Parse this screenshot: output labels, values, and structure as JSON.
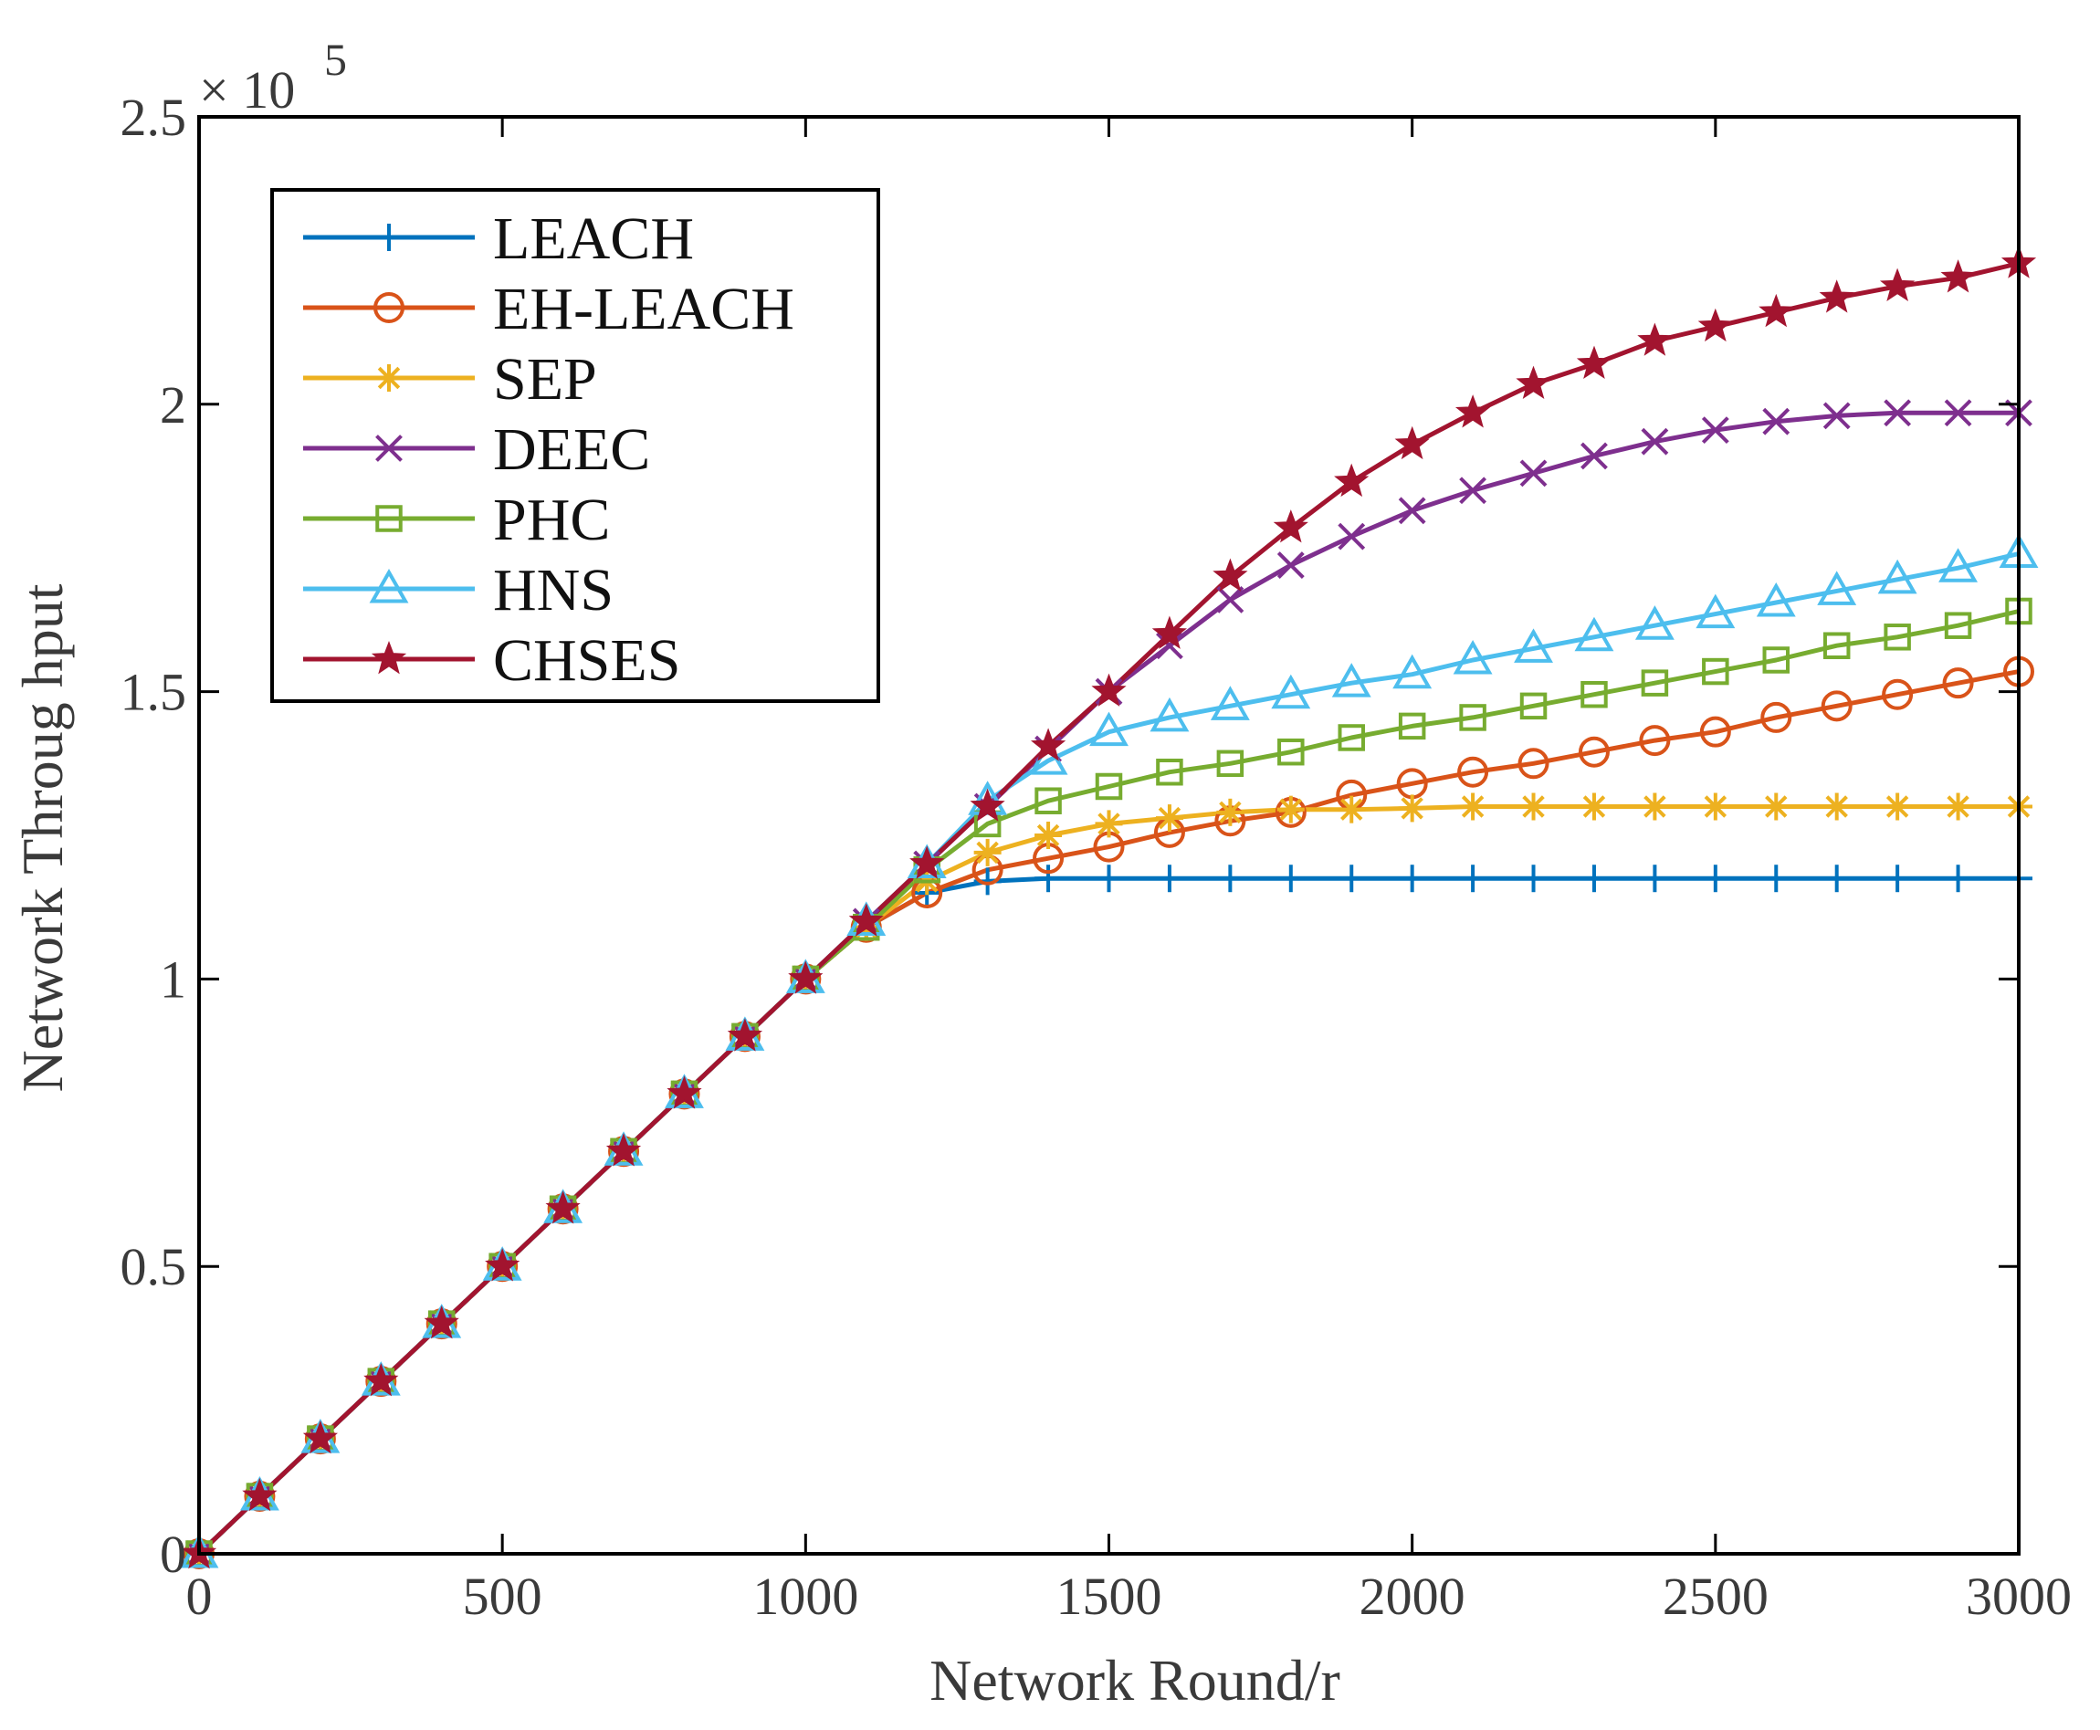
{
  "chart_data": {
    "type": "line",
    "title": "",
    "xlabel": "Network Round/r",
    "ylabel": "Network Throug hput",
    "xlim": [
      0,
      3000
    ],
    "ylim": [
      0,
      2.5
    ],
    "y_scale_label": "× 10",
    "y_scale_exponent": "5",
    "x_ticks": [
      0,
      500,
      1000,
      1500,
      2000,
      2500,
      3000
    ],
    "x_tick_labels": [
      "0",
      "500",
      "1000",
      "1500",
      "2000",
      "2500",
      "3000"
    ],
    "y_ticks": [
      0,
      0.5,
      1,
      1.5,
      2,
      2.5
    ],
    "y_tick_labels": [
      "0",
      "0.5",
      "1",
      "1.5",
      "2",
      "2.5"
    ],
    "grid": false,
    "legend_position": "top-left",
    "x": [
      0,
      100,
      200,
      300,
      400,
      500,
      600,
      700,
      800,
      900,
      1000,
      1100,
      1200,
      1300,
      1400,
      1500,
      1600,
      1700,
      1800,
      1900,
      2000,
      2100,
      2200,
      2300,
      2400,
      2500,
      2600,
      2700,
      2800,
      2900,
      3000
    ],
    "series": [
      {
        "name": "LEACH",
        "color": "#0072BD",
        "marker": "plus",
        "values": [
          0.0,
          0.1,
          0.2,
          0.3,
          0.4,
          0.5,
          0.6,
          0.7,
          0.8,
          0.9,
          1.0,
          1.09,
          1.15,
          1.17,
          1.175,
          1.175,
          1.175,
          1.175,
          1.175,
          1.175,
          1.175,
          1.175,
          1.175,
          1.175,
          1.175,
          1.175,
          1.175,
          1.175,
          1.175,
          1.175,
          1.175
        ]
      },
      {
        "name": "EH-LEACH",
        "color": "#D95319",
        "marker": "circle",
        "values": [
          0.0,
          0.1,
          0.2,
          0.3,
          0.4,
          0.5,
          0.6,
          0.7,
          0.8,
          0.9,
          1.0,
          1.09,
          1.15,
          1.19,
          1.21,
          1.23,
          1.255,
          1.275,
          1.29,
          1.32,
          1.34,
          1.36,
          1.375,
          1.395,
          1.415,
          1.43,
          1.455,
          1.475,
          1.495,
          1.515,
          1.535
        ]
      },
      {
        "name": "SEP",
        "color": "#EDB120",
        "marker": "asterisk",
        "values": [
          0.0,
          0.1,
          0.2,
          0.3,
          0.4,
          0.5,
          0.6,
          0.7,
          0.8,
          0.9,
          1.0,
          1.09,
          1.17,
          1.22,
          1.25,
          1.27,
          1.28,
          1.29,
          1.295,
          1.295,
          1.297,
          1.3,
          1.3,
          1.3,
          1.3,
          1.3,
          1.3,
          1.3,
          1.3,
          1.3,
          1.3
        ]
      },
      {
        "name": "DEEC",
        "color": "#7E2F8E",
        "marker": "cross",
        "values": [
          0.0,
          0.1,
          0.2,
          0.3,
          0.4,
          0.5,
          0.6,
          0.7,
          0.8,
          0.9,
          1.0,
          1.1,
          1.2,
          1.3,
          1.4,
          1.5,
          1.58,
          1.66,
          1.72,
          1.77,
          1.815,
          1.85,
          1.88,
          1.91,
          1.935,
          1.955,
          1.97,
          1.98,
          1.985,
          1.985,
          1.985
        ]
      },
      {
        "name": "PHC",
        "color": "#77AC30",
        "marker": "square",
        "values": [
          0.0,
          0.1,
          0.2,
          0.3,
          0.4,
          0.5,
          0.6,
          0.7,
          0.8,
          0.9,
          1.0,
          1.09,
          1.19,
          1.27,
          1.31,
          1.335,
          1.36,
          1.375,
          1.395,
          1.42,
          1.44,
          1.455,
          1.475,
          1.495,
          1.515,
          1.535,
          1.555,
          1.58,
          1.595,
          1.615,
          1.64
        ]
      },
      {
        "name": "HNS",
        "color": "#4DBEEE",
        "marker": "triangle",
        "values": [
          0.0,
          0.1,
          0.2,
          0.3,
          0.4,
          0.5,
          0.6,
          0.7,
          0.8,
          0.9,
          1.0,
          1.1,
          1.2,
          1.31,
          1.38,
          1.43,
          1.455,
          1.475,
          1.495,
          1.515,
          1.53,
          1.555,
          1.575,
          1.595,
          1.615,
          1.635,
          1.655,
          1.675,
          1.695,
          1.715,
          1.74
        ]
      },
      {
        "name": "CHSES",
        "color": "#A2142F",
        "marker": "star",
        "values": [
          0.0,
          0.1,
          0.2,
          0.3,
          0.4,
          0.5,
          0.6,
          0.7,
          0.8,
          0.9,
          1.0,
          1.1,
          1.2,
          1.3,
          1.405,
          1.5,
          1.6,
          1.7,
          1.785,
          1.865,
          1.93,
          1.985,
          2.035,
          2.07,
          2.11,
          2.135,
          2.16,
          2.185,
          2.205,
          2.22,
          2.245
        ]
      }
    ]
  }
}
